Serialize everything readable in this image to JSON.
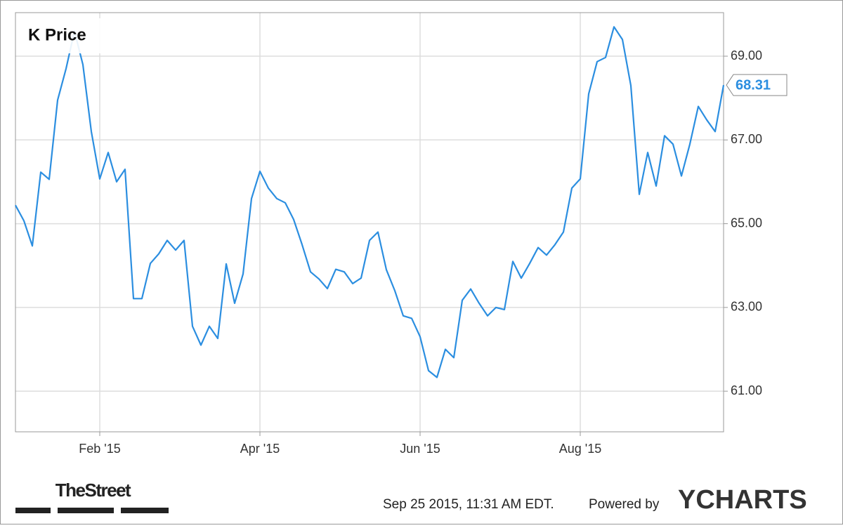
{
  "chart_data": {
    "type": "line",
    "title": "K Price",
    "color": "#2b8ee0",
    "categories": [
      null,
      null,
      null,
      null,
      null,
      null,
      null,
      null,
      null,
      null,
      "Feb '15",
      null,
      null,
      null,
      null,
      null,
      null,
      null,
      null,
      null,
      null,
      null,
      null,
      null,
      null,
      null,
      null,
      null,
      null,
      "Apr '15",
      null,
      null,
      null,
      null,
      null,
      null,
      null,
      null,
      null,
      null,
      null,
      null,
      null,
      null,
      null,
      null,
      null,
      null,
      "Jun '15",
      null,
      null,
      null,
      null,
      null,
      null,
      null,
      null,
      null,
      null,
      null,
      null,
      null,
      null,
      null,
      null,
      null,
      null,
      "Aug '15",
      null,
      null,
      null,
      null,
      null,
      null,
      null,
      null,
      null,
      null,
      null,
      null,
      null,
      null,
      null,
      null,
      null
    ],
    "values": [
      65.44,
      65.07,
      64.47,
      66.23,
      66.06,
      67.95,
      68.7,
      69.6,
      68.8,
      67.2,
      66.07,
      66.7,
      66.0,
      66.3,
      63.21,
      63.21,
      64.05,
      64.28,
      64.6,
      64.37,
      64.6,
      62.55,
      62.1,
      62.55,
      62.26,
      64.04,
      63.1,
      63.8,
      65.6,
      66.25,
      65.85,
      65.6,
      65.5,
      65.1,
      64.5,
      63.85,
      63.68,
      63.45,
      63.91,
      63.85,
      63.57,
      63.7,
      64.6,
      64.8,
      63.9,
      63.4,
      62.8,
      62.74,
      62.3,
      61.49,
      61.33,
      62.0,
      61.8,
      63.17,
      63.44,
      63.1,
      62.8,
      63.0,
      62.95,
      64.1,
      63.7,
      64.05,
      64.43,
      64.25,
      64.5,
      64.8,
      65.85,
      66.07,
      68.1,
      68.87,
      68.97,
      69.7,
      69.4,
      68.3,
      65.7,
      66.7,
      65.9,
      67.1,
      66.9,
      66.14,
      66.9,
      67.8,
      67.48,
      67.2,
      68.31
    ],
    "ylim": [
      60.03,
      70.04
    ],
    "yticks": [
      {
        "value": 61,
        "label": "61.00"
      },
      {
        "value": 63,
        "label": "63.00"
      },
      {
        "value": 65,
        "label": "65.00"
      },
      {
        "value": 67,
        "label": "67.00"
      },
      {
        "value": 69,
        "label": "69.00"
      }
    ],
    "grid": true
  },
  "footer": {
    "brand": "TheStreet",
    "timestamp": "Sep 25 2015, 11:31 AM EDT.",
    "powered_by": "Powered by",
    "logo": "YCHARTS"
  }
}
